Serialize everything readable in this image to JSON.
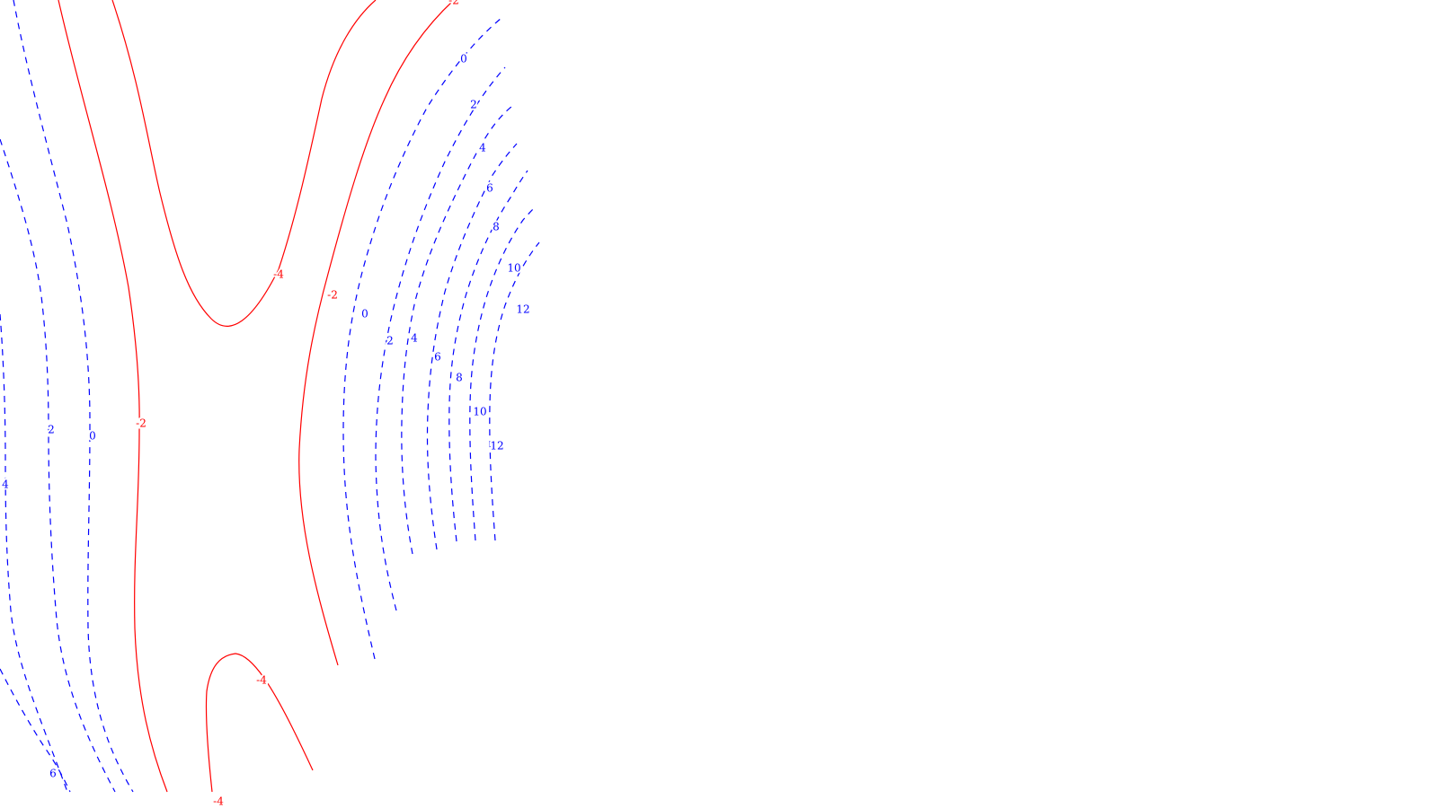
{
  "chart_data": {
    "type": "contour",
    "title": "",
    "xlabel": "",
    "ylabel": "",
    "grid": false,
    "axes_visible": false,
    "colors": {
      "negative": "#ff0000",
      "positive": "#0000ff"
    },
    "line_styles": {
      "negative": "solid",
      "positive": "dashed"
    },
    "levels": [
      -4,
      -2,
      0,
      2,
      4,
      6,
      8,
      10,
      12
    ],
    "labels": [
      {
        "text": "-2",
        "level": -2
      },
      {
        "text": "0",
        "level": 0
      },
      {
        "text": "2",
        "level": 2
      },
      {
        "text": "4",
        "level": 4
      },
      {
        "text": "6",
        "level": 6
      },
      {
        "text": "8",
        "level": 8
      },
      {
        "text": "10",
        "level": 10
      },
      {
        "text": "12",
        "level": 12
      },
      {
        "text": "-4",
        "level": -4
      },
      {
        "text": "-2",
        "level": -2
      },
      {
        "text": "0",
        "level": 0
      },
      {
        "text": "2",
        "level": 2
      },
      {
        "text": "4",
        "level": 4
      },
      {
        "text": "6",
        "level": 6
      },
      {
        "text": "8",
        "level": 8
      },
      {
        "text": "10",
        "level": 10
      },
      {
        "text": "12",
        "level": 12
      },
      {
        "text": "2",
        "level": 2
      },
      {
        "text": "0",
        "level": 0
      },
      {
        "text": "-2",
        "level": -2
      },
      {
        "text": "4",
        "level": 4
      },
      {
        "text": "-4",
        "level": -4
      },
      {
        "text": "6",
        "level": 6
      },
      {
        "text": "-4",
        "level": -4
      }
    ]
  }
}
